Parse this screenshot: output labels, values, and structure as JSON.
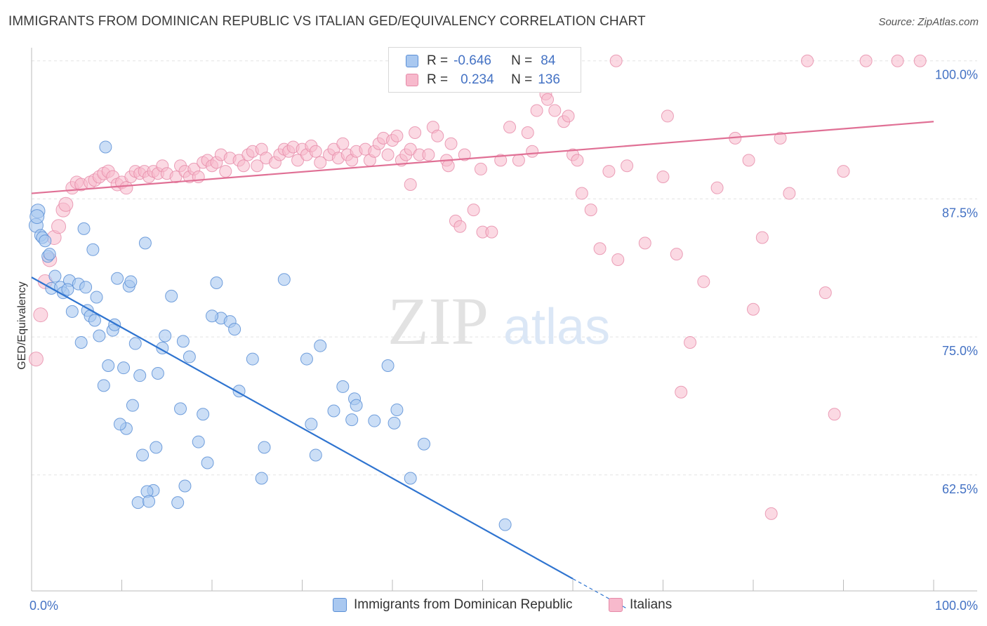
{
  "title": "IMMIGRANTS FROM DOMINICAN REPUBLIC VS ITALIAN GED/EQUIVALENCY CORRELATION CHART",
  "source": "Source: ZipAtlas.com",
  "watermark": {
    "zip": "ZIP",
    "atlas": "atlas"
  },
  "legend": {
    "rows": [
      {
        "r_label": "R =",
        "r_value": "-0.646",
        "n_label": "N =",
        "n_value": "84"
      },
      {
        "r_label": "R =",
        "r_value": "0.234",
        "n_label": "N =",
        "n_value": "136"
      }
    ]
  },
  "colors": {
    "blue_fill": "#a9c8f0",
    "blue_stroke": "#5b8fd6",
    "blue_line": "#2f74d0",
    "pink_fill": "#f7b9cc",
    "pink_stroke": "#e68aa8",
    "pink_line": "#e07095",
    "tick_text": "#4472c4",
    "grid": "#e3e3e3"
  },
  "chart_data": {
    "type": "scatter",
    "ylabel": "GED/Equivalency",
    "xlabel": "",
    "xlim": [
      0,
      100
    ],
    "ylim": [
      52,
      101
    ],
    "x_tick_labels": [
      {
        "v": 0,
        "label": "0.0%"
      },
      {
        "v": 100,
        "label": "100.0%"
      }
    ],
    "y_ticks": [
      {
        "v": 100,
        "label": "100.0%"
      },
      {
        "v": 87.5,
        "label": "87.5%"
      },
      {
        "v": 75,
        "label": "75.0%"
      },
      {
        "v": 62.5,
        "label": "62.5%"
      }
    ],
    "grid": true,
    "legend_position": "top-center",
    "series": [
      {
        "name": "Immigrants from Dominican Republic",
        "color": "blue",
        "trend": {
          "x0": 0,
          "y0": 80.4,
          "x1": 60,
          "y1": 53.1,
          "dash_to_x": 66,
          "dash_to_y": 50.4
        },
        "points": [
          [
            0.5,
            85.1
          ],
          [
            0.7,
            86.4
          ],
          [
            0.6,
            85.9
          ],
          [
            1.0,
            84.2
          ],
          [
            1.2,
            84.0
          ],
          [
            1.5,
            83.7
          ],
          [
            1.8,
            82.3
          ],
          [
            2.0,
            82.5
          ],
          [
            2.2,
            79.4
          ],
          [
            2.6,
            80.5
          ],
          [
            3.2,
            79.5
          ],
          [
            3.5,
            79.0
          ],
          [
            4.2,
            80.1
          ],
          [
            5.2,
            79.8
          ],
          [
            6.0,
            79.5
          ],
          [
            4.0,
            79.3
          ],
          [
            4.5,
            77.3
          ],
          [
            5.5,
            74.5
          ],
          [
            6.2,
            77.4
          ],
          [
            6.5,
            76.9
          ],
          [
            7.0,
            76.5
          ],
          [
            7.5,
            75.1
          ],
          [
            8.0,
            70.6
          ],
          [
            8.5,
            72.4
          ],
          [
            9.0,
            75.6
          ],
          [
            9.2,
            76.1
          ],
          [
            9.5,
            80.3
          ],
          [
            10.2,
            72.2
          ],
          [
            10.5,
            66.7
          ],
          [
            10.8,
            79.6
          ],
          [
            11.2,
            68.8
          ],
          [
            11.5,
            74.4
          ],
          [
            11.8,
            60.0
          ],
          [
            12.0,
            71.5
          ],
          [
            12.3,
            64.3
          ],
          [
            13.5,
            61.1
          ],
          [
            13.8,
            65.0
          ],
          [
            14.0,
            71.7
          ],
          [
            14.5,
            74.0
          ],
          [
            14.8,
            75.1
          ],
          [
            15.5,
            78.7
          ],
          [
            16.2,
            60.0
          ],
          [
            16.5,
            68.5
          ],
          [
            16.8,
            74.6
          ],
          [
            17.0,
            61.5
          ],
          [
            18.5,
            65.5
          ],
          [
            19.0,
            68.0
          ],
          [
            19.5,
            63.6
          ],
          [
            20.5,
            79.9
          ],
          [
            21.0,
            76.7
          ],
          [
            22.0,
            76.4
          ],
          [
            22.5,
            75.7
          ],
          [
            23.0,
            70.1
          ],
          [
            24.5,
            73.0
          ],
          [
            25.5,
            62.2
          ],
          [
            25.8,
            65.0
          ],
          [
            28.0,
            80.2
          ],
          [
            30.5,
            73.0
          ],
          [
            31.0,
            67.1
          ],
          [
            31.5,
            64.3
          ],
          [
            32.0,
            74.2
          ],
          [
            33.5,
            68.3
          ],
          [
            34.5,
            70.5
          ],
          [
            35.5,
            67.5
          ],
          [
            35.8,
            69.4
          ],
          [
            36.0,
            68.8
          ],
          [
            38.0,
            67.4
          ],
          [
            39.5,
            72.4
          ],
          [
            40.2,
            67.2
          ],
          [
            40.5,
            68.4
          ],
          [
            42.0,
            62.2
          ],
          [
            43.5,
            65.3
          ],
          [
            5.8,
            84.8
          ],
          [
            6.8,
            82.9
          ],
          [
            7.2,
            78.6
          ],
          [
            9.8,
            67.1
          ],
          [
            12.8,
            61.0
          ],
          [
            17.5,
            73.2
          ],
          [
            20.0,
            76.9
          ],
          [
            13.0,
            60.1
          ],
          [
            8.2,
            92.2
          ],
          [
            11.0,
            80.0
          ],
          [
            12.6,
            83.5
          ],
          [
            52.5,
            58.0
          ]
        ]
      },
      {
        "name": "Italians",
        "color": "pink",
        "trend": {
          "x0": 0,
          "y0": 88.0,
          "x1": 100,
          "y1": 94.5
        },
        "points": [
          [
            0.5,
            73.0
          ],
          [
            1.0,
            77.0
          ],
          [
            1.5,
            80.0
          ],
          [
            2.0,
            82.0
          ],
          [
            2.5,
            84.0
          ],
          [
            3.0,
            85.0
          ],
          [
            3.5,
            86.5
          ],
          [
            3.8,
            87.0
          ],
          [
            4.5,
            88.5
          ],
          [
            5.0,
            89.0
          ],
          [
            5.5,
            88.8
          ],
          [
            6.5,
            89.0
          ],
          [
            7.0,
            89.2
          ],
          [
            7.5,
            89.5
          ],
          [
            8.0,
            89.8
          ],
          [
            8.5,
            90.0
          ],
          [
            9.0,
            89.5
          ],
          [
            9.5,
            88.8
          ],
          [
            10.0,
            89.0
          ],
          [
            10.5,
            88.5
          ],
          [
            11.0,
            89.5
          ],
          [
            11.5,
            90.0
          ],
          [
            12.0,
            89.8
          ],
          [
            12.5,
            90.0
          ],
          [
            13.0,
            89.5
          ],
          [
            13.5,
            90.0
          ],
          [
            14.0,
            89.8
          ],
          [
            14.5,
            90.5
          ],
          [
            15.0,
            89.8
          ],
          [
            16.0,
            89.5
          ],
          [
            16.5,
            90.5
          ],
          [
            17.0,
            90.0
          ],
          [
            17.5,
            89.5
          ],
          [
            18.0,
            90.2
          ],
          [
            18.5,
            89.5
          ],
          [
            19.0,
            90.8
          ],
          [
            19.5,
            91.0
          ],
          [
            20.0,
            90.5
          ],
          [
            20.5,
            90.8
          ],
          [
            21.0,
            91.5
          ],
          [
            21.5,
            90.0
          ],
          [
            22.0,
            91.2
          ],
          [
            23.0,
            91.0
          ],
          [
            23.5,
            90.5
          ],
          [
            24.0,
            91.5
          ],
          [
            24.5,
            91.8
          ],
          [
            25.0,
            90.5
          ],
          [
            25.5,
            92.0
          ],
          [
            26.0,
            91.2
          ],
          [
            27.0,
            90.8
          ],
          [
            27.5,
            91.5
          ],
          [
            28.0,
            92.0
          ],
          [
            28.5,
            91.8
          ],
          [
            29.0,
            92.2
          ],
          [
            29.5,
            91.0
          ],
          [
            30.0,
            92.0
          ],
          [
            30.5,
            91.5
          ],
          [
            31.0,
            92.3
          ],
          [
            31.5,
            91.8
          ],
          [
            32.0,
            90.8
          ],
          [
            33.0,
            91.5
          ],
          [
            33.5,
            92.0
          ],
          [
            34.0,
            91.2
          ],
          [
            34.5,
            92.5
          ],
          [
            35.0,
            91.5
          ],
          [
            35.5,
            91.0
          ],
          [
            36.0,
            91.8
          ],
          [
            37.0,
            92.0
          ],
          [
            37.5,
            91.0
          ],
          [
            38.0,
            91.8
          ],
          [
            38.5,
            92.5
          ],
          [
            39.0,
            93.0
          ],
          [
            39.5,
            91.5
          ],
          [
            40.0,
            92.8
          ],
          [
            40.5,
            93.2
          ],
          [
            41.0,
            91.0
          ],
          [
            41.5,
            91.5
          ],
          [
            42.0,
            92.0
          ],
          [
            42.5,
            93.5
          ],
          [
            43.0,
            91.5
          ],
          [
            44.0,
            91.5
          ],
          [
            44.5,
            94.0
          ],
          [
            45.0,
            93.2
          ],
          [
            46.0,
            91.0
          ],
          [
            46.5,
            92.5
          ],
          [
            47.0,
            85.5
          ],
          [
            47.5,
            85.0
          ],
          [
            48.0,
            91.5
          ],
          [
            49.0,
            86.5
          ],
          [
            50.0,
            84.5
          ],
          [
            51.0,
            84.5
          ],
          [
            52.0,
            91.0
          ],
          [
            53.0,
            94.0
          ],
          [
            54.0,
            91.0
          ],
          [
            55.0,
            93.5
          ],
          [
            56.0,
            95.5
          ],
          [
            57.0,
            97.0
          ],
          [
            58.0,
            95.5
          ],
          [
            59.0,
            94.5
          ],
          [
            60.0,
            91.5
          ],
          [
            61.0,
            88.0
          ],
          [
            62.0,
            86.5
          ],
          [
            63.0,
            83.0
          ],
          [
            64.0,
            90.0
          ],
          [
            65.0,
            82.0
          ],
          [
            66.0,
            90.5
          ],
          [
            68.0,
            83.5
          ],
          [
            70.0,
            89.5
          ],
          [
            71.5,
            82.5
          ],
          [
            73.0,
            74.5
          ],
          [
            74.5,
            80.0
          ],
          [
            76.0,
            88.5
          ],
          [
            80.0,
            77.5
          ],
          [
            81.0,
            84.0
          ],
          [
            82.0,
            59.0
          ],
          [
            83.0,
            93.0
          ],
          [
            84.0,
            88.0
          ],
          [
            88.0,
            79.0
          ],
          [
            89.0,
            68.0
          ],
          [
            90.0,
            90.0
          ],
          [
            42.0,
            88.8
          ],
          [
            46.2,
            90.5
          ],
          [
            49.8,
            90.2
          ],
          [
            55.5,
            91.8
          ],
          [
            57.2,
            96.5
          ],
          [
            59.5,
            95.0
          ],
          [
            64.8,
            100.0
          ],
          [
            70.5,
            95.0
          ],
          [
            72.0,
            70.0
          ],
          [
            78.0,
            93.0
          ],
          [
            79.5,
            91.0
          ],
          [
            86.0,
            100.0
          ],
          [
            92.5,
            100.0
          ],
          [
            96.0,
            100.0
          ],
          [
            98.5,
            100.0
          ],
          [
            60.5,
            91.0
          ]
        ]
      }
    ]
  },
  "bottom_legend": [
    {
      "label": "Immigrants from Dominican Republic"
    },
    {
      "label": "Italians"
    }
  ]
}
